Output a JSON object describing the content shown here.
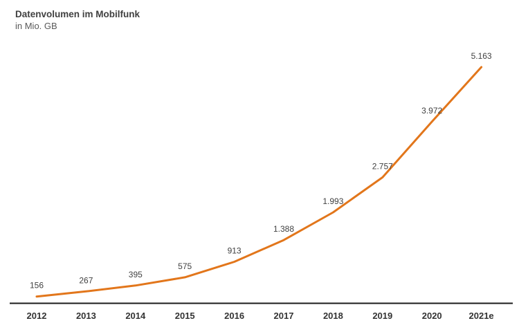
{
  "header": {
    "title": "Datenvolumen im Mobilfunk",
    "subtitle": "in Mio. GB"
  },
  "colors": {
    "line": "#E2761B",
    "axis": "#1A1A1A",
    "value_label": "#404040",
    "tick_label": "#333333"
  },
  "chart_data": {
    "type": "line",
    "title": "Datenvolumen im Mobilfunk",
    "subtitle": "in Mio. GB",
    "categories": [
      "2012",
      "2013",
      "2014",
      "2015",
      "2016",
      "2017",
      "2018",
      "2019",
      "2020",
      "2021e"
    ],
    "values": [
      156,
      267,
      395,
      575,
      913,
      1388,
      1993,
      2757,
      3972,
      5163
    ],
    "value_labels": [
      "156",
      "267",
      "395",
      "575",
      "913",
      "1.388",
      "1.993",
      "2.757",
      "3.972",
      "5.163"
    ],
    "series_name": "Datenvolumen in Mio. GB",
    "xlabel": "",
    "ylabel": "in Mio. GB",
    "ylim": [
      0,
      5163
    ],
    "grid": false,
    "legend_position": "none",
    "data_labels_shown": true
  }
}
